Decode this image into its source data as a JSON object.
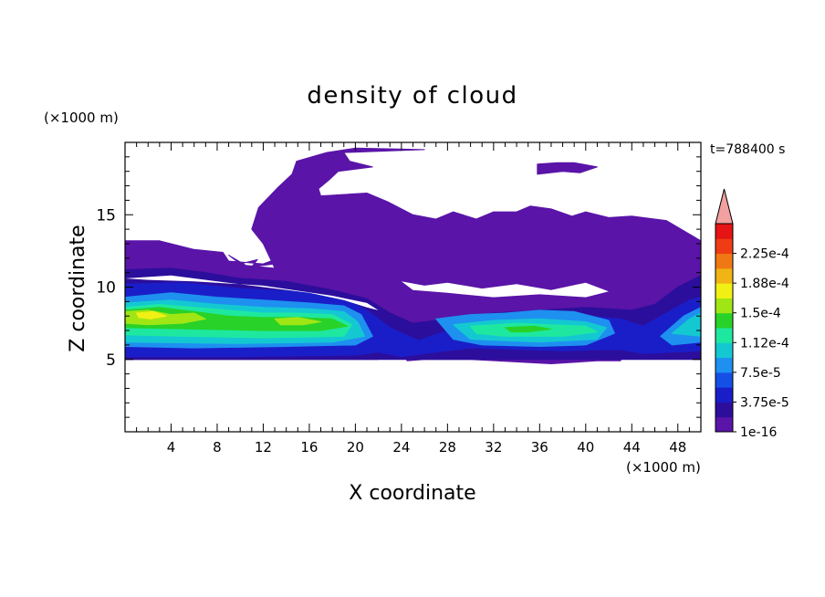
{
  "chart_data": {
    "type": "heatmap",
    "title": "density of cloud",
    "xlabel": "X coordinate",
    "ylabel": "Z coordinate",
    "x_unit": "(×1000 m)",
    "y_unit": "(×1000 m)",
    "time_label": "t=788400 s",
    "xlim": [
      0,
      50
    ],
    "ylim": [
      0,
      20
    ],
    "x_ticks": [
      4,
      8,
      12,
      16,
      20,
      24,
      28,
      32,
      36,
      40,
      44,
      48
    ],
    "y_ticks": [
      5,
      10,
      15
    ],
    "colorbar": {
      "labels": [
        "1e-16",
        "3.75e-5",
        "7.5e-5",
        "1.12e-4",
        "1.5e-4",
        "1.88e-4",
        "2.25e-4"
      ],
      "levels": [
        1e-16,
        1.875e-05,
        3.75e-05,
        5.625e-05,
        7.5e-05,
        9.375e-05,
        0.000112,
        0.00013125,
        0.00015,
        0.00016875,
        0.000188,
        0.00020625,
        0.000225,
        0.00024375
      ],
      "colors": [
        "#5a14a8",
        "#2c0e9c",
        "#1a1ec8",
        "#1450e6",
        "#1e90f0",
        "#14c8d2",
        "#1ee8a0",
        "#28d228",
        "#a0e614",
        "#f0f014",
        "#f0b414",
        "#f07814",
        "#f03c14",
        "#e61414"
      ],
      "extend_color": "#f2a0a0"
    },
    "regions": [
      {
        "level": 0,
        "points": [
          [
            0,
            13.2
          ],
          [
            3,
            13.2
          ],
          [
            6,
            12.6
          ],
          [
            8.5,
            12.4
          ],
          [
            9,
            11.8
          ],
          [
            12,
            11.6
          ],
          [
            14,
            12.2
          ],
          [
            16,
            12.2
          ],
          [
            17.5,
            11.4
          ],
          [
            16,
            10.6
          ],
          [
            15,
            11.8
          ],
          [
            11,
            11.4
          ],
          [
            11.5,
            11.9
          ],
          [
            10,
            11.6
          ],
          [
            9,
            12.2
          ],
          [
            10.5,
            11.5
          ],
          [
            13,
            11.3
          ],
          [
            12,
            13
          ],
          [
            11,
            14
          ],
          [
            11.6,
            15.5
          ],
          [
            13.3,
            16.9
          ],
          [
            14.5,
            17.8
          ],
          [
            14.9,
            18.7
          ],
          [
            17.5,
            19.3
          ],
          [
            20,
            19.6
          ],
          [
            26,
            19.5
          ],
          [
            19,
            19.3
          ],
          [
            19.5,
            18.7
          ],
          [
            21.5,
            18.3
          ],
          [
            18.5,
            18
          ],
          [
            17.7,
            17.4
          ],
          [
            16.8,
            16.8
          ],
          [
            17,
            16.3
          ],
          [
            21,
            16.5
          ],
          [
            22.8,
            15.9
          ],
          [
            25,
            15
          ],
          [
            27,
            14.7
          ],
          [
            28.5,
            15.2
          ],
          [
            30.5,
            14.7
          ],
          [
            32,
            15.2
          ],
          [
            34,
            15.2
          ],
          [
            35.2,
            15.6
          ],
          [
            37,
            15.4
          ],
          [
            38.8,
            14.9
          ],
          [
            40,
            15.2
          ],
          [
            42,
            14.8
          ],
          [
            44,
            14.9
          ],
          [
            47,
            14.6
          ],
          [
            50,
            13.2
          ],
          [
            50,
            10
          ],
          [
            49,
            10
          ],
          [
            47,
            9
          ],
          [
            46,
            8
          ],
          [
            44.5,
            7
          ],
          [
            43.5,
            5.5
          ],
          [
            43,
            4.9
          ],
          [
            41,
            4.9
          ],
          [
            37,
            4.7
          ],
          [
            30,
            5
          ],
          [
            26,
            5
          ],
          [
            24.5,
            4.9
          ],
          [
            24.2,
            5.3
          ],
          [
            23,
            5.4
          ],
          [
            22,
            5.6
          ],
          [
            22,
            5
          ],
          [
            20,
            5
          ],
          [
            14,
            5
          ],
          [
            4,
            5
          ],
          [
            0,
            5
          ]
        ]
      },
      {
        "level": 0,
        "points": [
          [
            35.8,
            18.5
          ],
          [
            37.5,
            18.6
          ],
          [
            39,
            18.6
          ],
          [
            41,
            18.3
          ],
          [
            39.5,
            17.9
          ],
          [
            38,
            18
          ],
          [
            35.8,
            17.8
          ]
        ]
      },
      {
        "level": 1,
        "points": [
          [
            0,
            11.2
          ],
          [
            4,
            11.3
          ],
          [
            7,
            11
          ],
          [
            10,
            10.6
          ],
          [
            14,
            10.4
          ],
          [
            18,
            9.8
          ],
          [
            21,
            9.2
          ],
          [
            23,
            8.2
          ],
          [
            25,
            7.5
          ],
          [
            28,
            7.8
          ],
          [
            32,
            8.2
          ],
          [
            36,
            8.4
          ],
          [
            40,
            8.6
          ],
          [
            44,
            8.4
          ],
          [
            46,
            8.8
          ],
          [
            48,
            10
          ],
          [
            50,
            10.8
          ],
          [
            50,
            5
          ],
          [
            0,
            5
          ]
        ]
      },
      {
        "level": 2,
        "points": [
          [
            0,
            10.2
          ],
          [
            5,
            10.3
          ],
          [
            10,
            9.9
          ],
          [
            15,
            9.7
          ],
          [
            19,
            9.2
          ],
          [
            21,
            8.4
          ],
          [
            23,
            7.2
          ],
          [
            25.5,
            6.3
          ],
          [
            28,
            7
          ],
          [
            32,
            7.6
          ],
          [
            36,
            7.8
          ],
          [
            40,
            8
          ],
          [
            43,
            7.8
          ],
          [
            45,
            7.3
          ],
          [
            47,
            8.2
          ],
          [
            49,
            9.1
          ],
          [
            50,
            9.3
          ],
          [
            50,
            5.6
          ],
          [
            45,
            5.4
          ],
          [
            43,
            5.7
          ],
          [
            38,
            5.6
          ],
          [
            30,
            5.8
          ],
          [
            26,
            5.4
          ],
          [
            24,
            5.2
          ],
          [
            22,
            5.5
          ],
          [
            20,
            5.3
          ],
          [
            10,
            5.2
          ],
          [
            0,
            5.2
          ]
        ]
      },
      {
        "level": 4,
        "points": [
          [
            0,
            9.3
          ],
          [
            4,
            9.6
          ],
          [
            8,
            9.3
          ],
          [
            12,
            9.1
          ],
          [
            16,
            8.9
          ],
          [
            19,
            8.7
          ],
          [
            20.5,
            8.1
          ],
          [
            21.5,
            6.6
          ],
          [
            20,
            6
          ],
          [
            14,
            5.9
          ],
          [
            6,
            5.8
          ],
          [
            0,
            5.9
          ]
        ]
      },
      {
        "level": 4,
        "points": [
          [
            27,
            7.8
          ],
          [
            30,
            8.1
          ],
          [
            33,
            8.2
          ],
          [
            36,
            8.4
          ],
          [
            39,
            8.3
          ],
          [
            42,
            7.7
          ],
          [
            42.5,
            6.8
          ],
          [
            40,
            6
          ],
          [
            36,
            5.9
          ],
          [
            31,
            6
          ],
          [
            28.5,
            6.4
          ]
        ]
      },
      {
        "level": 4,
        "points": [
          [
            46.5,
            6.6
          ],
          [
            48.5,
            8
          ],
          [
            50,
            8.6
          ],
          [
            50,
            6.2
          ],
          [
            47.5,
            6
          ]
        ]
      },
      {
        "level": 5,
        "points": [
          [
            0,
            8.9
          ],
          [
            4,
            9.1
          ],
          [
            8,
            8.8
          ],
          [
            12,
            8.6
          ],
          [
            16,
            8.5
          ],
          [
            19,
            8.3
          ],
          [
            20.2,
            7.6
          ],
          [
            20.8,
            6.6
          ],
          [
            18,
            6.2
          ],
          [
            10,
            6.1
          ],
          [
            0,
            6.2
          ]
        ]
      },
      {
        "level": 5,
        "points": [
          [
            28.5,
            7.4
          ],
          [
            32,
            7.7
          ],
          [
            36,
            7.8
          ],
          [
            40,
            7.6
          ],
          [
            41.8,
            7.2
          ],
          [
            41,
            6.4
          ],
          [
            36,
            6.2
          ],
          [
            30,
            6.4
          ]
        ]
      },
      {
        "level": 5,
        "points": [
          [
            47.5,
            6.8
          ],
          [
            49,
            7.8
          ],
          [
            50,
            8.2
          ],
          [
            50,
            6.6
          ]
        ]
      },
      {
        "level": 6,
        "points": [
          [
            0,
            8.6
          ],
          [
            3,
            8.8
          ],
          [
            6,
            8.6
          ],
          [
            9,
            8.4
          ],
          [
            12,
            8.2
          ],
          [
            15,
            8.2
          ],
          [
            18,
            8.1
          ],
          [
            19.7,
            7.4
          ],
          [
            19,
            6.6
          ],
          [
            12,
            6.5
          ],
          [
            5,
            6.6
          ],
          [
            0,
            6.7
          ]
        ]
      },
      {
        "level": 6,
        "points": [
          [
            30,
            7.3
          ],
          [
            34,
            7.5
          ],
          [
            37,
            7.4
          ],
          [
            40,
            7.3
          ],
          [
            41,
            6.9
          ],
          [
            38,
            6.6
          ],
          [
            33,
            6.6
          ],
          [
            30.5,
            6.8
          ]
        ]
      },
      {
        "level": 7,
        "points": [
          [
            0,
            8.4
          ],
          [
            3,
            8.6
          ],
          [
            6,
            8.3
          ],
          [
            9,
            8
          ],
          [
            12,
            7.9
          ],
          [
            15,
            7.9
          ],
          [
            18,
            7.8
          ],
          [
            19.3,
            7.3
          ],
          [
            17,
            7
          ],
          [
            12,
            7
          ],
          [
            6,
            7.1
          ],
          [
            0,
            7.2
          ]
        ]
      },
      {
        "level": 7,
        "points": [
          [
            33,
            7.2
          ],
          [
            35.5,
            7.3
          ],
          [
            37,
            7.1
          ],
          [
            35,
            6.9
          ],
          [
            33.5,
            6.9
          ]
        ]
      },
      {
        "level": 8,
        "points": [
          [
            0,
            8.3
          ],
          [
            2,
            8.4
          ],
          [
            4,
            8.1
          ],
          [
            6,
            8.2
          ],
          [
            7,
            7.8
          ],
          [
            5,
            7.5
          ],
          [
            2,
            7.4
          ],
          [
            0,
            7.5
          ]
        ]
      },
      {
        "level": 8,
        "points": [
          [
            13,
            7.8
          ],
          [
            15,
            7.9
          ],
          [
            17,
            7.6
          ],
          [
            15.5,
            7.4
          ],
          [
            13.5,
            7.4
          ]
        ]
      },
      {
        "level": 9,
        "points": [
          [
            1,
            8.2
          ],
          [
            2.5,
            8.3
          ],
          [
            3.6,
            8
          ],
          [
            2.2,
            7.8
          ],
          [
            1.2,
            7.9
          ]
        ]
      }
    ],
    "white_gaps": [
      {
        "points": [
          [
            0,
            10.6
          ],
          [
            4,
            10.8
          ],
          [
            8,
            10.4
          ],
          [
            12,
            10
          ],
          [
            16,
            9.6
          ],
          [
            19,
            9.1
          ],
          [
            21,
            8.6
          ],
          [
            22,
            8.4
          ],
          [
            21,
            8.9
          ],
          [
            18,
            9.4
          ],
          [
            12,
            10.1
          ],
          [
            6,
            10.4
          ],
          [
            2,
            10.5
          ]
        ]
      },
      {
        "points": [
          [
            24,
            10.4
          ],
          [
            26,
            10.1
          ],
          [
            28,
            10.3
          ],
          [
            31,
            9.9
          ],
          [
            34,
            10.2
          ],
          [
            37,
            9.8
          ],
          [
            40,
            10.3
          ],
          [
            42,
            9.7
          ],
          [
            40,
            9.3
          ],
          [
            36,
            9.5
          ],
          [
            32,
            9.3
          ],
          [
            28,
            9.6
          ],
          [
            25,
            9.8
          ]
        ]
      }
    ]
  }
}
